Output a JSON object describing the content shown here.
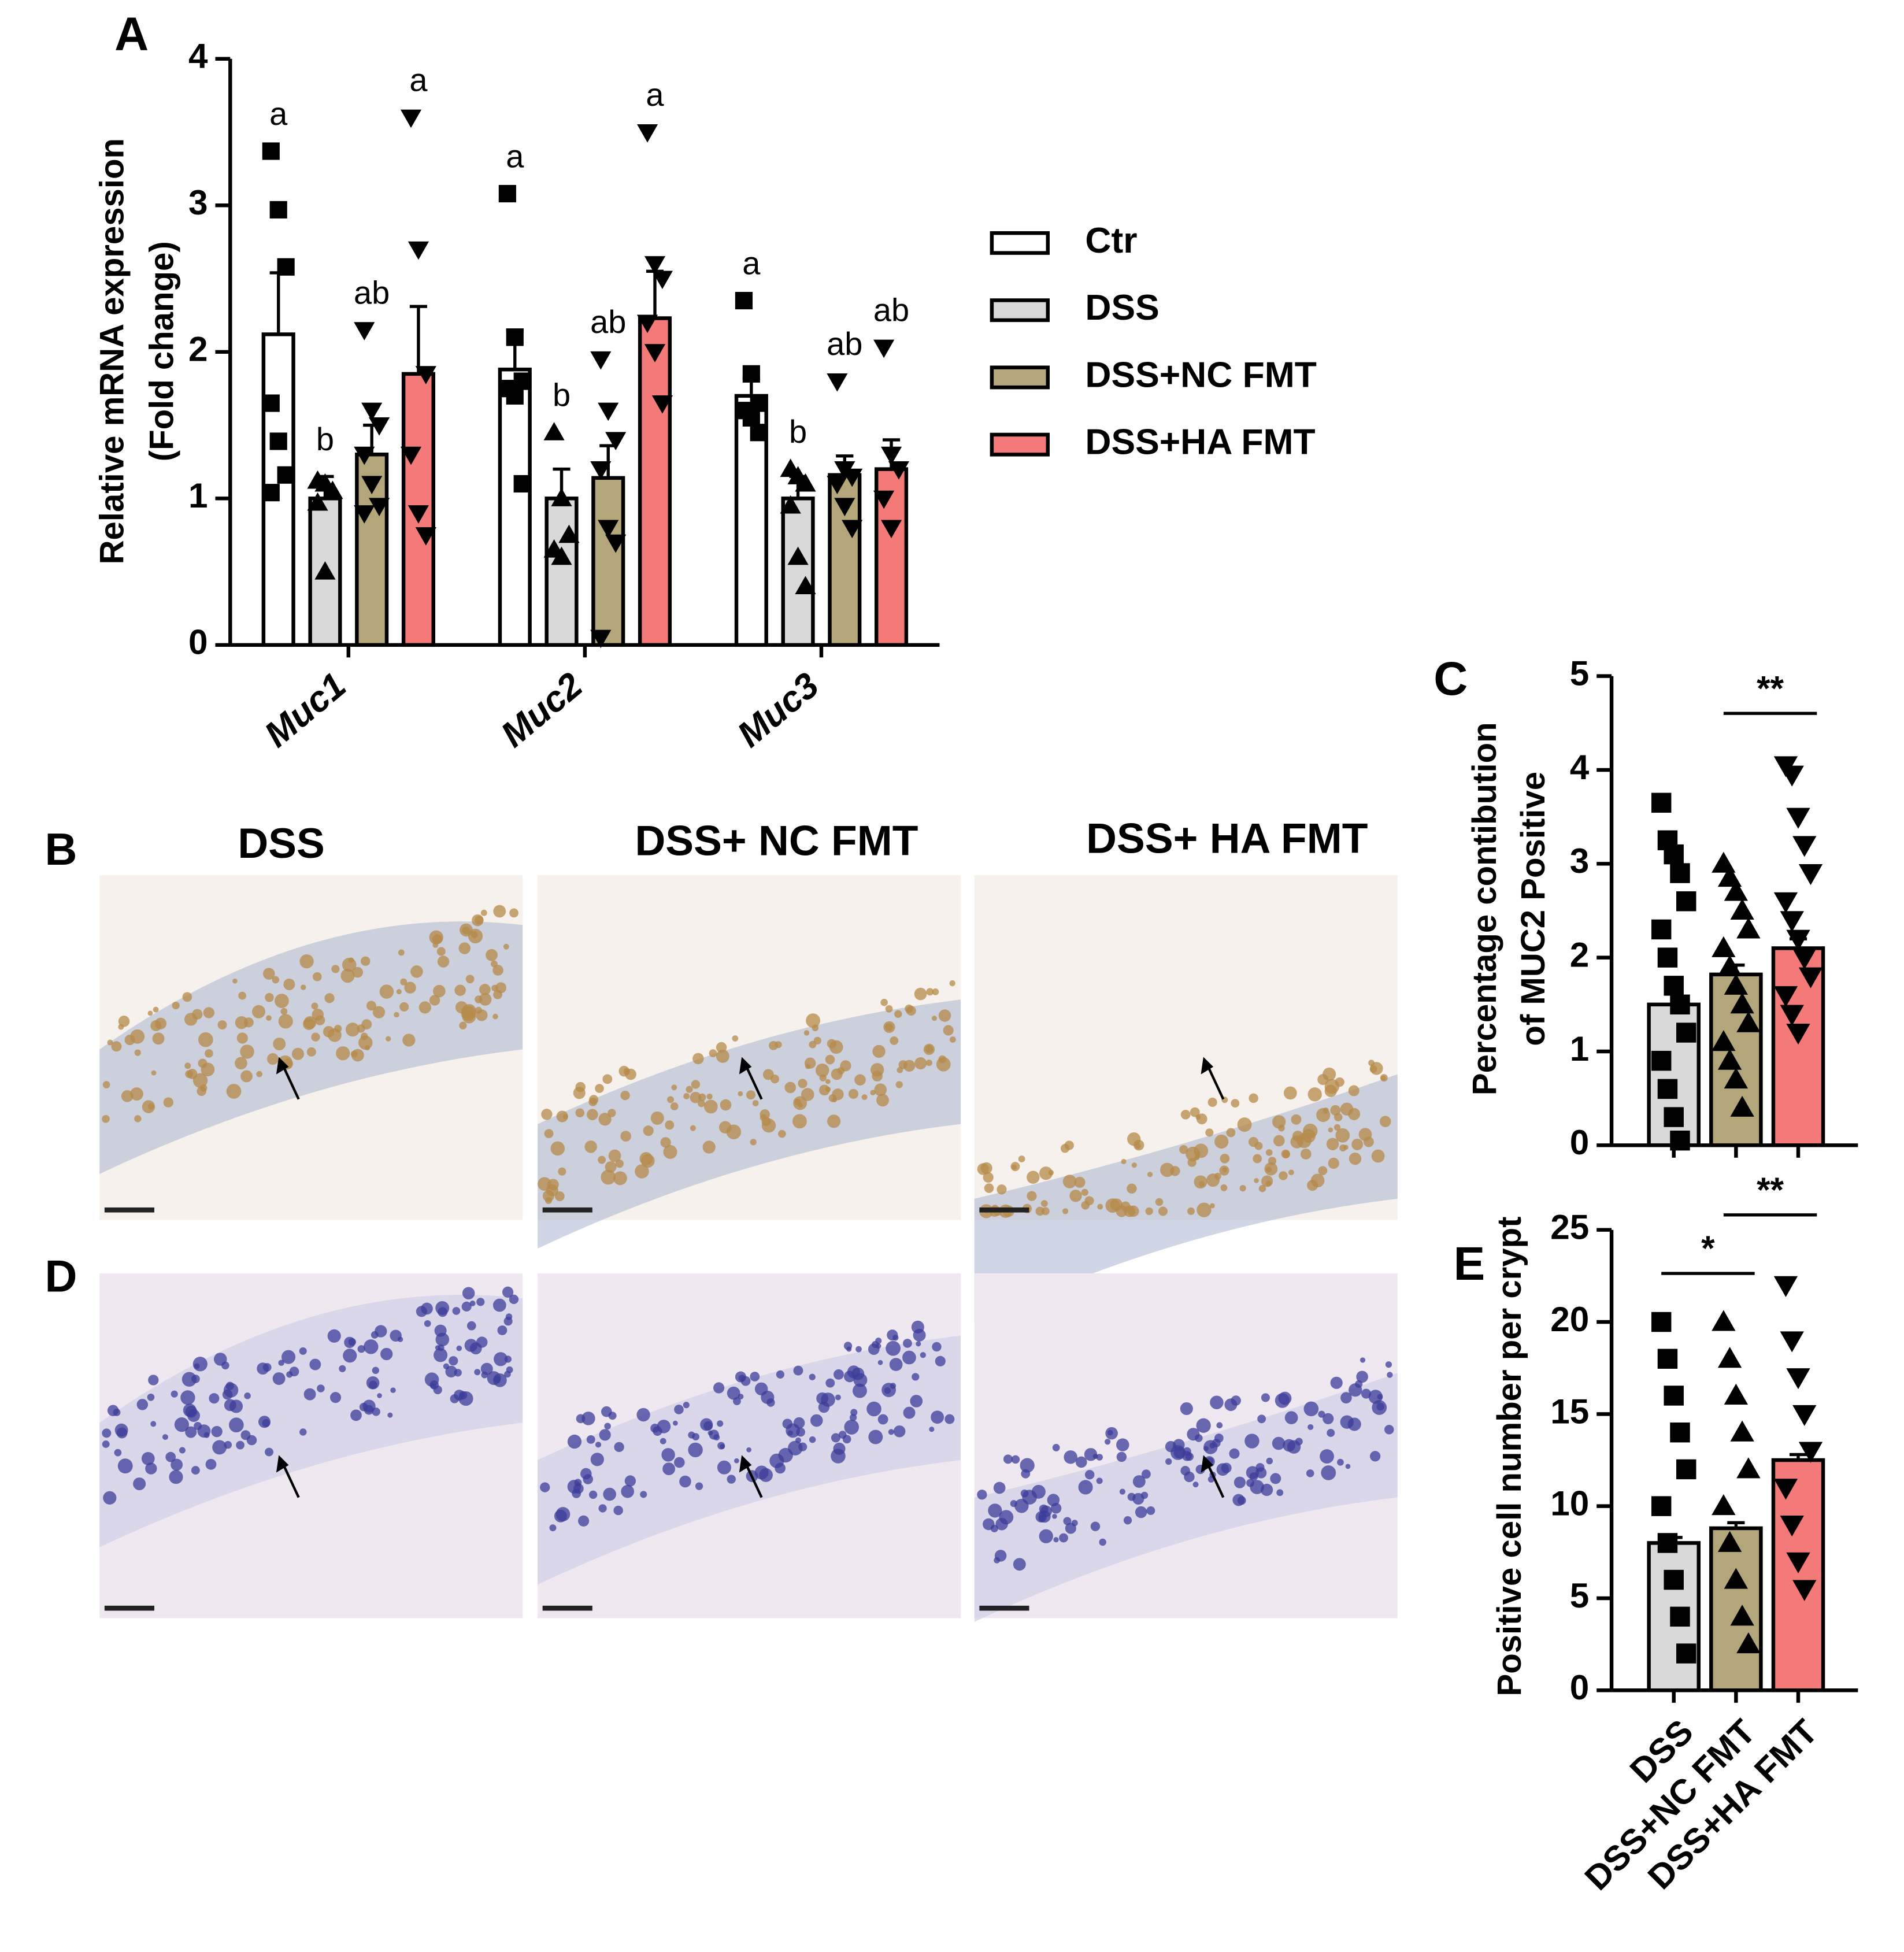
{
  "chart_data": [
    {
      "type": "bar",
      "panel_label": "A",
      "ylabel": [
        "Relative mRNA expression",
        "(Fold change)"
      ],
      "categories": [
        "Muc1",
        "Muc2",
        "Muc3"
      ],
      "ylim": [
        0,
        4
      ],
      "yticks": [
        0,
        1,
        2,
        3,
        4
      ],
      "legend": "right",
      "series": [
        {
          "name": "Ctr",
          "color": "#ffffff",
          "marker": "square",
          "values": [
            2.12,
            1.88,
            1.7
          ],
          "errors": [
            0.42,
            0.27,
            0.12
          ],
          "letters": [
            "a",
            "a",
            "a"
          ],
          "points": [
            [
              3.37,
              2.97,
              2.58,
              1.65,
              1.39,
              1.16,
              1.04
            ],
            [
              3.08,
              2.1,
              1.8,
              1.75,
              1.7,
              1.1
            ],
            [
              2.35,
              1.85,
              1.65,
              1.6,
              1.55,
              1.45
            ]
          ]
        },
        {
          "name": "DSS",
          "color": "#d9d9d9",
          "marker": "triangle-up",
          "values": [
            1.0,
            1.0,
            1.0
          ],
          "errors": [
            0.15,
            0.2,
            0.15
          ],
          "letters": [
            "b",
            "b",
            "b"
          ],
          "points": [
            [
              1.12,
              1.1,
              1.05,
              0.97,
              0.5
            ],
            [
              1.45,
              1.0,
              0.75,
              0.65,
              0.6
            ],
            [
              1.2,
              1.15,
              1.1,
              0.95,
              0.6,
              0.4
            ]
          ]
        },
        {
          "name": "DSS+NC FMT",
          "color": "#b3a67a",
          "marker": "triangle-down",
          "values": [
            1.3,
            1.14,
            1.16
          ],
          "errors": [
            0.2,
            0.22,
            0.13
          ],
          "letters": [
            "ab",
            "ab",
            "ab"
          ],
          "points": [
            [
              2.15,
              1.6,
              1.5,
              1.3,
              1.1,
              0.95,
              0.9
            ],
            [
              1.95,
              1.6,
              1.4,
              1.2,
              0.8,
              0.7,
              0.05
            ],
            [
              1.8,
              1.2,
              1.15,
              1.1,
              0.95,
              0.8
            ]
          ]
        },
        {
          "name": "DSS+HA FMT",
          "color": "#f47a7a",
          "marker": "triangle-down",
          "values": [
            1.85,
            2.23,
            1.2
          ],
          "errors": [
            0.46,
            0.32,
            0.2
          ],
          "letters": [
            "a",
            "a",
            "ab"
          ],
          "points": [
            [
              3.6,
              2.7,
              1.85,
              1.3,
              0.9,
              0.75
            ],
            [
              3.5,
              2.6,
              2.5,
              2.2,
              2.0,
              1.65
            ],
            [
              2.03,
              1.3,
              1.2,
              1.0,
              0.8
            ]
          ]
        }
      ]
    },
    {
      "type": "bar",
      "panel_label": "C",
      "ylabel": [
        "Percentage contibution",
        "of MUC2 Positive"
      ],
      "ylim": [
        0,
        5
      ],
      "yticks": [
        0,
        1,
        2,
        3,
        4,
        5
      ],
      "values": [
        1.5,
        1.82,
        2.1
      ],
      "errors": [
        0.12,
        0.1,
        0.1
      ],
      "colors": [
        "#d9d9d9",
        "#b3a67a",
        "#f47a7a"
      ],
      "markers": [
        "square",
        "triangle-up",
        "triangle-down"
      ],
      "points": [
        [
          3.65,
          3.25,
          3.1,
          2.9,
          2.6,
          2.3,
          2.0,
          1.7,
          1.5,
          1.2,
          0.9,
          0.6,
          0.3,
          0.05
        ],
        [
          3.0,
          2.85,
          2.7,
          2.5,
          2.3,
          2.1,
          1.9,
          1.7,
          1.5,
          1.3,
          1.1,
          0.9,
          0.7,
          0.4
        ],
        [
          4.05,
          3.95,
          3.5,
          3.2,
          2.9,
          2.6,
          2.4,
          2.2,
          2.0,
          1.8,
          1.6,
          1.4,
          1.2
        ]
      ],
      "annotations": [
        "**"
      ]
    },
    {
      "type": "bar",
      "panel_label": "E",
      "ylabel": [
        "Positive cell number per crypt"
      ],
      "categories": [
        "DSS",
        "DSS+NC FMT",
        "DSS+HA FMT"
      ],
      "ylim": [
        0,
        25
      ],
      "yticks": [
        0,
        5,
        10,
        15,
        20,
        25
      ],
      "values": [
        8.0,
        8.8,
        12.5
      ],
      "errors": [
        0.3,
        0.3,
        0.3
      ],
      "colors": [
        "#d9d9d9",
        "#b3a67a",
        "#f47a7a"
      ],
      "markers": [
        "square",
        "triangle-up",
        "triangle-down"
      ],
      "points": [
        [
          20,
          18,
          16,
          14,
          12,
          10,
          8,
          6,
          4,
          2
        ],
        [
          20,
          18,
          16,
          14,
          12,
          10,
          8,
          6,
          4,
          2.5
        ],
        [
          22,
          19,
          17,
          15,
          13,
          11,
          9,
          7,
          5.5
        ]
      ],
      "annotations": [
        "*",
        "**"
      ]
    }
  ],
  "panel_B": {
    "label": "B",
    "titles": [
      "DSS",
      "DSS+ NC FMT",
      "DSS+ HA FMT"
    ]
  },
  "panel_D": {
    "label": "D"
  }
}
